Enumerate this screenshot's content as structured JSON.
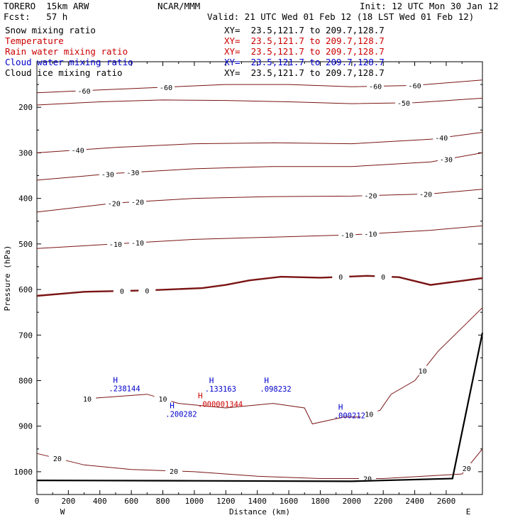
{
  "header": {
    "model": "TORERO  15km ARW",
    "center": "NCAR/MMM",
    "init": "Init: 12 UTC Mon 30 Jan 12",
    "fcst": "Fcst:   57 h",
    "valid": "Valid: 21 UTC Wed 01 Feb 12 (18 LST Wed 01 Feb 12)"
  },
  "fields": [
    {
      "name": "Snow mixing ratio",
      "xy": "XY=  23.5,121.7 to 209.7,128.7",
      "color": "#000000"
    },
    {
      "name": "Temperature",
      "xy": "XY=  23.5,121.7 to 209.7,128.7",
      "color": "#cc0000"
    },
    {
      "name": "Rain water mixing ratio",
      "xy": "XY=  23.5,121.7 to 209.7,128.7",
      "color": "#cc0000"
    },
    {
      "name": "Cloud water mixing ratio",
      "xy": "XY=  23.5,121.7 to 209.7,128.7",
      "color": "#0000cc"
    },
    {
      "name": "Cloud ice mixing ratio",
      "xy": "XY=  23.5,121.7 to 209.7,128.7",
      "color": "#000000"
    }
  ],
  "chart_data": {
    "type": "contour",
    "xlabel": "Distance (km)",
    "ylabel": "Pressure (hPa)",
    "xlim": [
      0,
      2830
    ],
    "ylim": [
      1050,
      100
    ],
    "x_ticks": [
      0,
      200,
      400,
      600,
      800,
      1000,
      1200,
      1400,
      1600,
      1800,
      2000,
      2200,
      2400,
      2600
    ],
    "y_ticks": [
      200,
      300,
      400,
      500,
      600,
      700,
      800,
      900,
      1000
    ],
    "x_end_labels": {
      "left": "W",
      "right": "E"
    },
    "contour_color": "#7a1414",
    "temperature_contours": [
      {
        "level": -60,
        "points": [
          [
            0,
            168
          ],
          [
            400,
            162
          ],
          [
            800,
            156
          ],
          [
            1200,
            150
          ],
          [
            1600,
            150
          ],
          [
            2000,
            155
          ],
          [
            2400,
            152
          ],
          [
            2830,
            140
          ]
        ],
        "labels": [
          [
            300,
            "-60"
          ],
          [
            820,
            "-60"
          ],
          [
            2150,
            "-60"
          ],
          [
            2400,
            "-60"
          ]
        ]
      },
      {
        "level": -50,
        "points": [
          [
            0,
            195
          ],
          [
            400,
            188
          ],
          [
            800,
            184
          ],
          [
            1200,
            185
          ],
          [
            1600,
            188
          ],
          [
            2000,
            192
          ],
          [
            2400,
            190
          ],
          [
            2830,
            180
          ]
        ],
        "labels": [
          [
            2330,
            "-50"
          ]
        ]
      },
      {
        "level": -40,
        "points": [
          [
            0,
            300
          ],
          [
            500,
            288
          ],
          [
            1000,
            280
          ],
          [
            1500,
            278
          ],
          [
            2000,
            280
          ],
          [
            2500,
            270
          ],
          [
            2830,
            255
          ]
        ],
        "labels": [
          [
            260,
            "-40"
          ],
          [
            2570,
            "-40"
          ]
        ]
      },
      {
        "level": -30,
        "points": [
          [
            0,
            360
          ],
          [
            500,
            345
          ],
          [
            1000,
            335
          ],
          [
            1500,
            330
          ],
          [
            2000,
            330
          ],
          [
            2500,
            320
          ],
          [
            2830,
            300
          ]
        ],
        "labels": [
          [
            450,
            "-30"
          ],
          [
            610,
            "-30"
          ],
          [
            2600,
            "-30"
          ]
        ]
      },
      {
        "level": -20,
        "points": [
          [
            0,
            430
          ],
          [
            500,
            410
          ],
          [
            1000,
            400
          ],
          [
            1500,
            396
          ],
          [
            2000,
            395
          ],
          [
            2500,
            390
          ],
          [
            2830,
            380
          ]
        ],
        "labels": [
          [
            490,
            "-20"
          ],
          [
            640,
            "-20"
          ],
          [
            2120,
            "-20"
          ],
          [
            2470,
            "-20"
          ]
        ]
      },
      {
        "level": -10,
        "points": [
          [
            0,
            510
          ],
          [
            500,
            500
          ],
          [
            1000,
            490
          ],
          [
            1500,
            485
          ],
          [
            2000,
            480
          ],
          [
            2500,
            470
          ],
          [
            2830,
            460
          ]
        ],
        "labels": [
          [
            500,
            "-10"
          ],
          [
            640,
            "-10"
          ],
          [
            1970,
            "-10"
          ],
          [
            2120,
            "-10"
          ]
        ]
      },
      {
        "level": 0,
        "points": [
          [
            0,
            614
          ],
          [
            300,
            605
          ],
          [
            700,
            602
          ],
          [
            1050,
            597
          ],
          [
            1200,
            590
          ],
          [
            1350,
            580
          ],
          [
            1550,
            572
          ],
          [
            1800,
            574
          ],
          [
            2100,
            570
          ],
          [
            2300,
            573
          ],
          [
            2500,
            590
          ],
          [
            2830,
            575
          ]
        ],
        "labels": [
          [
            540,
            "0"
          ],
          [
            700,
            "0"
          ],
          [
            1930,
            "0"
          ],
          [
            2200,
            "0"
          ]
        ],
        "bold": true
      },
      {
        "level": 10,
        "points": [
          [
            300,
            840
          ],
          [
            700,
            830
          ],
          [
            900,
            850
          ],
          [
            1200,
            860
          ],
          [
            1500,
            850
          ],
          [
            1700,
            860
          ],
          [
            1750,
            895
          ],
          [
            1950,
            880
          ],
          [
            2050,
            880
          ],
          [
            2180,
            865
          ],
          [
            2250,
            830
          ],
          [
            2400,
            800
          ],
          [
            2550,
            735
          ],
          [
            2830,
            640
          ]
        ],
        "labels": [
          [
            320,
            "10"
          ],
          [
            800,
            "10"
          ],
          [
            2110,
            "10"
          ],
          [
            2450,
            "10"
          ]
        ]
      },
      {
        "level": 20,
        "points": [
          [
            0,
            960
          ],
          [
            300,
            985
          ],
          [
            600,
            995
          ],
          [
            1000,
            1000
          ],
          [
            1400,
            1010
          ],
          [
            1800,
            1015
          ],
          [
            2200,
            1015
          ],
          [
            2700,
            1005
          ],
          [
            2830,
            950
          ]
        ],
        "labels": [
          [
            130,
            "20"
          ],
          [
            870,
            "20"
          ],
          [
            2100,
            "20"
          ],
          [
            2730,
            "20"
          ]
        ]
      }
    ],
    "terrain": {
      "points": [
        [
          0,
          1019
        ],
        [
          1000,
          1020
        ],
        [
          2000,
          1021
        ],
        [
          2640,
          1015
        ],
        [
          2830,
          695
        ]
      ]
    },
    "cloud_water_maxima": [
      {
        "x": 520,
        "p": 811,
        "label": "H",
        "value": ".238144"
      },
      {
        "x": 880,
        "p": 867,
        "label": "H",
        "value": ".200282"
      },
      {
        "x": 1130,
        "p": 812,
        "label": "H",
        "value": ".133163"
      },
      {
        "x": 1480,
        "p": 812,
        "label": "H",
        "value": ".098232"
      },
      {
        "x": 1950,
        "p": 870,
        "label": "H",
        "value": ".000212"
      }
    ],
    "rain_water_maxima": [
      {
        "x": 1050,
        "p": 845,
        "label": "H",
        "value": ".000001344"
      }
    ]
  }
}
